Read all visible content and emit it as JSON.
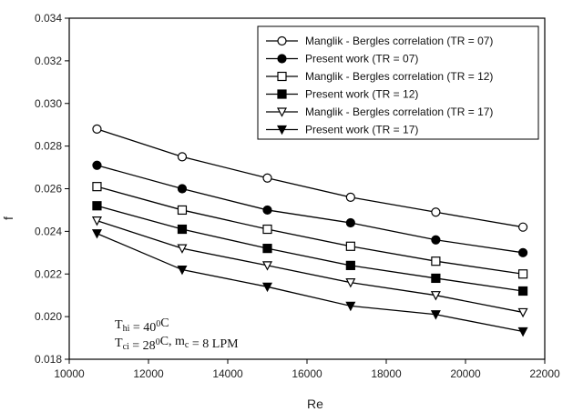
{
  "chart_data": {
    "type": "line",
    "xlabel": "Re",
    "ylabel": "f",
    "xlim": [
      10000,
      22000
    ],
    "ylim": [
      0.018,
      0.034
    ],
    "xticks": [
      10000,
      12000,
      14000,
      16000,
      18000,
      20000,
      22000
    ],
    "yticks": [
      0.018,
      0.02,
      0.022,
      0.024,
      0.026,
      0.028,
      0.03,
      0.032,
      0.034
    ],
    "ytick_labels": [
      "0.018",
      "0.020",
      "0.022",
      "0.024",
      "0.026",
      "0.028",
      "0.030",
      "0.032",
      "0.034"
    ],
    "grid": false,
    "legend_position": "top-right",
    "x": [
      10700,
      12850,
      15000,
      17100,
      19250,
      21450
    ],
    "series": [
      {
        "name": "Manglik - Bergles correlation (TR = 07)",
        "marker": "circle-open",
        "values": [
          0.0288,
          0.0275,
          0.0265,
          0.0256,
          0.0249,
          0.0242
        ]
      },
      {
        "name": "Present work (TR = 07)",
        "marker": "circle-filled",
        "values": [
          0.0271,
          0.026,
          0.025,
          0.0244,
          0.0236,
          0.023
        ]
      },
      {
        "name": "Manglik - Bergles correlation (TR = 12)",
        "marker": "square-open",
        "values": [
          0.0261,
          0.025,
          0.0241,
          0.0233,
          0.0226,
          0.022
        ]
      },
      {
        "name": "Present work (TR = 12)",
        "marker": "square-filled",
        "values": [
          0.0252,
          0.0241,
          0.0232,
          0.0224,
          0.0218,
          0.0212
        ]
      },
      {
        "name": "Manglik - Bergles correlation (TR = 17)",
        "marker": "triangle-open",
        "values": [
          0.0245,
          0.0232,
          0.0224,
          0.0216,
          0.021,
          0.0202
        ]
      },
      {
        "name": "Present work (TR = 17)",
        "marker": "triangle-filled",
        "values": [
          0.0239,
          0.0222,
          0.0214,
          0.0205,
          0.0201,
          0.0193
        ]
      }
    ],
    "annotations": {
      "line1": "Thi = 40⁰C",
      "line2": "Tci = 28⁰C, mc = 8 LPM"
    }
  }
}
